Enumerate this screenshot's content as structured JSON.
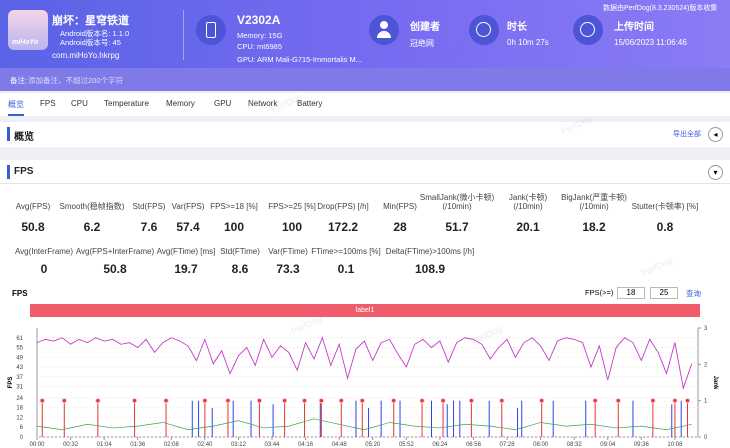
{
  "header": {
    "app_name": "崩坏：星穹铁道",
    "app_icon_text": "miHoYo",
    "android_version_name": "Android版本名: 1.1.0",
    "android_version_code": "Android版本号: 45",
    "package": "com.miHoYo.hkrpg",
    "device": "V2302A",
    "memory": "Memory: 15G",
    "cpu": "CPU: mt6985",
    "gpu": "GPU: ARM Mali-G715-Immortalis M...",
    "creator_label": "创建者",
    "creator": "冠绝网",
    "duration_label": "时长",
    "duration": "0h 10m 27s",
    "upload_label": "上传时间",
    "upload_time": "15/06/2023 11:06:46",
    "source": "数据由PerfDog(8.3.230524)版本收集"
  },
  "note": {
    "label": "备注:",
    "placeholder": "添加备注，不超过200个字符"
  },
  "tabs": [
    "概览",
    "FPS",
    "CPU",
    "Temperature",
    "Memory",
    "GPU",
    "Network",
    "Battery"
  ],
  "overview": {
    "title": "概览",
    "export": "导出全部"
  },
  "watermark": "PerfDog",
  "fps_panel": {
    "title": "FPS",
    "stats": [
      [
        {
          "label": [
            "Avg(FPS)"
          ],
          "value": 50.8
        },
        {
          "label": [
            "Smooth(稳帧指数)"
          ],
          "value": 6.2
        },
        {
          "label": [
            "Std(FPS)"
          ],
          "value": 7.6
        },
        {
          "label": [
            "Var(FPS)"
          ],
          "value": 57.4
        },
        {
          "label": [
            "FPS>=18 [%]"
          ],
          "value": 100
        },
        {
          "label": [
            "FPS>=25 [%]"
          ],
          "value": 100
        },
        {
          "label": [
            "Drop(FPS) [/h]"
          ],
          "value": 172.2
        },
        {
          "label": [
            "Min(FPS)"
          ],
          "value": 28
        },
        {
          "label": [
            "SmallJank(微小卡顿)",
            "(/10min)"
          ],
          "value": 51.7
        },
        {
          "label": [
            "Jank(卡顿)",
            "(/10min)"
          ],
          "value": 20.1
        },
        {
          "label": [
            "BigJank(严重卡顿)",
            "(/10min)"
          ],
          "value": 18.2
        },
        {
          "label": [
            "Stutter(卡顿率) [%]"
          ],
          "value": 0.8
        }
      ],
      [
        {
          "label": [
            "Avg(InterFrame)"
          ],
          "value": 0
        },
        {
          "label": [
            "Avg(FPS+InterFrame)"
          ],
          "value": 50.8
        },
        {
          "label": [
            "Avg(FTime) [ms]"
          ],
          "value": 19.7
        },
        {
          "label": [
            "Std(FTime)"
          ],
          "value": 8.6
        },
        {
          "label": [
            "Var(FTime)"
          ],
          "value": 73.3
        },
        {
          "label": [
            "FTime>=100ms [%]"
          ],
          "value": 0.1
        },
        {
          "label": [
            "Delta(FTime)>100ms [/h]"
          ],
          "value": 108.9
        }
      ]
    ]
  },
  "chart_data": {
    "type": "line",
    "title": "FPS",
    "threshold_label": "FPS(>=)",
    "thresholds": [
      18,
      25
    ],
    "query": "查询",
    "band_label": "label1",
    "y_label": "FPS",
    "y2_label": "Jank",
    "xlim": [
      0,
      630
    ],
    "ylim": [
      0,
      67
    ],
    "y2lim": [
      0,
      3
    ],
    "xticks": [
      {
        "value": 0,
        "label": "00:00"
      },
      {
        "value": 32,
        "label": "00:32"
      },
      {
        "value": 64,
        "label": "01:04"
      },
      {
        "value": 96,
        "label": "01:36"
      },
      {
        "value": 128,
        "label": "02:08"
      },
      {
        "value": 160,
        "label": "02:40"
      },
      {
        "value": 192,
        "label": "03:12"
      },
      {
        "value": 224,
        "label": "03:44"
      },
      {
        "value": 256,
        "label": "04:16"
      },
      {
        "value": 288,
        "label": "04:48"
      },
      {
        "value": 320,
        "label": "05:20"
      },
      {
        "value": 352,
        "label": "05:52"
      },
      {
        "value": 384,
        "label": "06:24"
      },
      {
        "value": 416,
        "label": "06:56"
      },
      {
        "value": 448,
        "label": "07:28"
      },
      {
        "value": 480,
        "label": "08:00"
      },
      {
        "value": 512,
        "label": "08:32"
      },
      {
        "value": 544,
        "label": "09:04"
      },
      {
        "value": 576,
        "label": "09:36"
      },
      {
        "value": 608,
        "label": "10:08"
      }
    ],
    "yticks": [
      0,
      6,
      12,
      18,
      24,
      31,
      37,
      43,
      49,
      55,
      61
    ],
    "y2ticks": [
      0,
      1,
      2,
      3
    ],
    "grid": true,
    "series": [
      {
        "color": "#c23bc9",
        "x": [
          0,
          8,
          16,
          24,
          32,
          40,
          48,
          56,
          64,
          72,
          80,
          88,
          96,
          104,
          112,
          120,
          128,
          136,
          144,
          152,
          160,
          168,
          176,
          184,
          192,
          200,
          208,
          216,
          224,
          232,
          240,
          248,
          256,
          264,
          272,
          280,
          288,
          296,
          304,
          312,
          320,
          328,
          336,
          344,
          352,
          360,
          368,
          376,
          384,
          392,
          400,
          408,
          416,
          424,
          432,
          440,
          448,
          456,
          464,
          472,
          480,
          488,
          496,
          504,
          512,
          520,
          528,
          536,
          544,
          552,
          560,
          568,
          576,
          584,
          592,
          600,
          608,
          616,
          624
        ],
        "values": [
          58,
          60,
          59,
          61,
          57,
          60,
          58,
          61,
          59,
          60,
          57,
          58,
          55,
          60,
          52,
          58,
          61,
          59,
          56,
          47,
          60,
          45,
          53,
          39,
          50,
          55,
          44,
          60,
          49,
          56,
          52,
          41,
          58,
          48,
          61,
          44,
          57,
          36,
          54,
          59,
          47,
          58,
          60,
          51,
          43,
          57,
          60,
          55,
          59,
          46,
          58,
          61,
          60,
          57,
          48,
          55,
          60,
          49,
          58,
          61,
          56,
          47,
          59,
          61,
          60,
          58,
          43,
          56,
          35,
          55,
          61,
          58,
          47,
          60,
          52,
          39,
          58,
          30,
          45
        ]
      },
      {
        "color": "#2f45e3",
        "axis": "y2",
        "kind": "spike",
        "x": [
          148,
          154,
          167,
          187,
          204,
          225,
          270,
          304,
          316,
          328,
          346,
          376,
          391,
          397,
          403,
          431,
          458,
          462,
          492,
          523,
          568,
          605,
          614
        ],
        "values": [
          1,
          1,
          0.8,
          1,
          1,
          0.9,
          1,
          1,
          0.8,
          1,
          1,
          1,
          0.9,
          1,
          1,
          1,
          0.8,
          1,
          1,
          1,
          1,
          0.9,
          1
        ]
      },
      {
        "color": "#e23535",
        "axis": "y2",
        "kind": "spike",
        "markers": true,
        "x": [
          5,
          26,
          58,
          93,
          123,
          160,
          182,
          212,
          236,
          255,
          271,
          290,
          310,
          340,
          367,
          387,
          414,
          443,
          481,
          532,
          554,
          587,
          608,
          620
        ],
        "values": [
          1,
          1,
          1,
          1,
          1,
          1,
          1,
          1,
          1,
          1,
          1,
          1,
          1,
          1,
          1,
          1,
          1,
          1,
          1,
          1,
          1,
          1,
          1,
          1
        ]
      },
      {
        "color": "#3ea24a",
        "axis": "y2",
        "x": [
          0,
          24,
          48,
          72,
          96,
          120,
          144,
          168,
          192,
          216,
          240,
          264,
          288,
          312,
          336,
          360,
          384,
          408,
          432,
          456,
          480,
          504,
          528,
          552,
          576,
          600,
          624
        ],
        "values": [
          0.3,
          0.2,
          0.35,
          0.25,
          0.3,
          0.4,
          0.2,
          0.3,
          0.45,
          0.25,
          0.3,
          0.5,
          0.35,
          0.2,
          0.4,
          0.3,
          0.25,
          0.35,
          0.3,
          0.2,
          0.4,
          0.3,
          0.35,
          0.25,
          0.3,
          0.2,
          0.35
        ]
      }
    ]
  }
}
